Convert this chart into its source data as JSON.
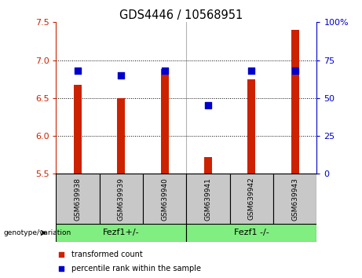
{
  "title": "GDS4446 / 10568951",
  "samples": [
    "GSM639938",
    "GSM639939",
    "GSM639940",
    "GSM639941",
    "GSM639942",
    "GSM639943"
  ],
  "transformed_count": [
    6.67,
    6.5,
    6.88,
    5.72,
    6.75,
    7.4
  ],
  "percentile_rank": [
    68,
    65,
    68,
    45,
    68,
    68
  ],
  "ylim_left": [
    5.5,
    7.5
  ],
  "ylim_right": [
    0,
    100
  ],
  "yticks_left": [
    5.5,
    6.0,
    6.5,
    7.0,
    7.5
  ],
  "yticks_right": [
    0,
    25,
    50,
    75,
    100
  ],
  "ytick_labels_right": [
    "0",
    "25",
    "50",
    "75",
    "100%"
  ],
  "groups": [
    {
      "label": "Fezf1+/-",
      "indices": [
        0,
        1,
        2
      ]
    },
    {
      "label": "Fezf1 -/-",
      "indices": [
        3,
        4,
        5
      ]
    }
  ],
  "bar_color": "#CC2200",
  "dot_color": "#0000CC",
  "bar_width": 0.18,
  "dot_size": 28,
  "background_label": "#C8C8C8",
  "background_group": "#80EE80",
  "grid_yticks": [
    6.0,
    6.5,
    7.0
  ],
  "genotype_label": "genotype/variation",
  "legend": [
    {
      "label": "transformed count",
      "color": "#CC2200"
    },
    {
      "label": "percentile rank within the sample",
      "color": "#0000CC"
    }
  ]
}
